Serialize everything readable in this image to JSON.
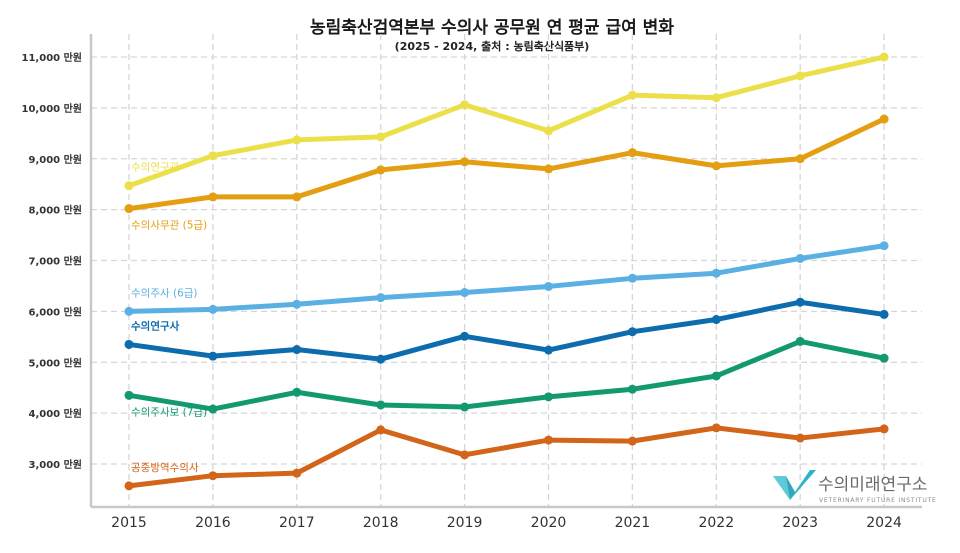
{
  "chart_data": {
    "type": "line",
    "title": "농림축산검역본부 수의사 공무원 연 평균 급여 변화",
    "subtitle": "(2025 - 2024, 출처 : 농림축산식품부)",
    "xlabel": "",
    "ylabel": "",
    "x": [
      "2015",
      "2016",
      "2017",
      "2018",
      "2019",
      "2020",
      "2021",
      "2022",
      "2023",
      "2024"
    ],
    "ylim": [
      2000,
      11500
    ],
    "yticks": [
      3000,
      4000,
      5000,
      6000,
      7000,
      8000,
      9000,
      10000,
      11000
    ],
    "ytick_labels": [
      "3,000 만원",
      "4,000 만원",
      "5,000 만원",
      "6,000 만원",
      "7,000 만원",
      "8,000 만원",
      "9,000 만원",
      "10,000 만원",
      "11,000 만원"
    ],
    "grid": true,
    "unit": "만원",
    "series": [
      {
        "name": "수의연구관",
        "color": "#ECE04A",
        "values": [
          8470,
          9060,
          9370,
          9430,
          10060,
          9550,
          10250,
          10200,
          10630,
          11000
        ],
        "label_anchor": "above-first"
      },
      {
        "name": "수의사무관 (5급)",
        "color": "#E39E12",
        "values": [
          8020,
          8250,
          8250,
          8780,
          8940,
          8800,
          9120,
          8860,
          9000,
          9780
        ],
        "label_anchor": "below-first"
      },
      {
        "name": "수의주사 (6급)",
        "color": "#5AAFE3",
        "values": [
          6000,
          6040,
          6140,
          6270,
          6370,
          6490,
          6650,
          6750,
          7040,
          7290
        ],
        "label_anchor": "above-first"
      },
      {
        "name": "수의연구사",
        "color": "#0C6CAE",
        "values": [
          5350,
          5120,
          5250,
          5060,
          5510,
          5240,
          5600,
          5840,
          6180,
          5940
        ],
        "label_anchor": "above-first"
      },
      {
        "name": "수의주사보 (7급)",
        "color": "#139970",
        "values": [
          4350,
          4080,
          4410,
          4160,
          4120,
          4320,
          4470,
          4730,
          5410,
          5080
        ],
        "label_anchor": "below-first"
      },
      {
        "name": "공중방역수의사",
        "color": "#D2651A",
        "values": [
          2570,
          2770,
          2820,
          3670,
          3180,
          3470,
          3450,
          3710,
          3510,
          3690
        ],
        "label_anchor": "above-first"
      }
    ]
  },
  "watermark": {
    "name": "수의미래연구소",
    "tagline": "VETERINARY FUTURE INSTITUTE",
    "logo_color": "#2BB3C9"
  }
}
